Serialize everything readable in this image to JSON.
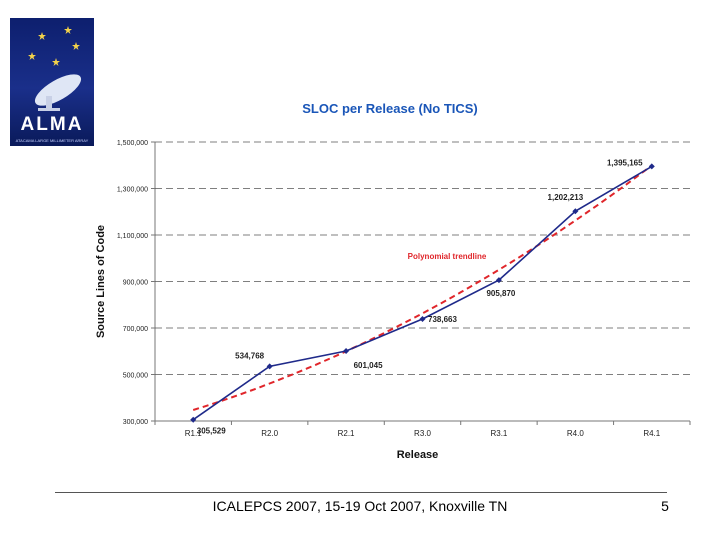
{
  "logo": {
    "name": "ALMA",
    "tagline": "ATACAMA LARGE MILLIMETER ARRAY"
  },
  "chart_data": {
    "type": "line",
    "title": "SLOC per Release (No TICS)",
    "xlabel": "Release",
    "ylabel": "Source Lines of Code",
    "categories": [
      "R1.1",
      "R2.0",
      "R2.1",
      "R3.0",
      "R3.1",
      "R4.0",
      "R4.1"
    ],
    "series": [
      {
        "values": [
          305529,
          534768,
          601045,
          738663,
          905870,
          1202213,
          1395165
        ],
        "color": "#1f2a8a"
      }
    ],
    "data_labels": [
      "305,529",
      "534,768",
      "601,045",
      "738,663",
      "905,870",
      "1,202,213",
      "1,395,165"
    ],
    "trendline": {
      "name": "Polynomial trendline",
      "color": "#e0262b"
    },
    "ylim": [
      300000,
      1500000
    ],
    "yticks": [
      300000,
      500000,
      700000,
      900000,
      1100000,
      1300000,
      1500000
    ],
    "ytick_labels": [
      "300,000",
      "500,000",
      "700,000",
      "900,000",
      "1,100,000",
      "1,300,000",
      "1,500,000"
    ],
    "grid": true
  },
  "footer": {
    "text": "ICALEPCS 2007, 15-19 Oct 2007, Knoxville TN",
    "page_number": "5"
  }
}
